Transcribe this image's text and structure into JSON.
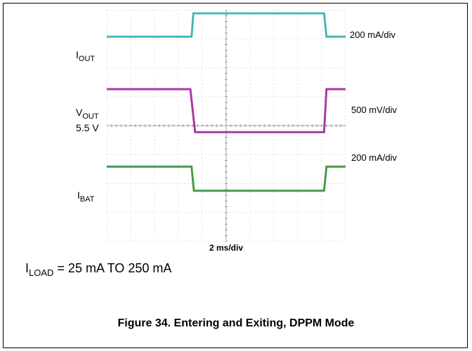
{
  "chart_data": {
    "type": "line",
    "title": "",
    "xlabel": "2 ms/div",
    "xlim": [
      0,
      20
    ],
    "ylim": [
      0,
      8
    ],
    "grid": true,
    "series": [
      {
        "name": "I_OUT",
        "color": "#3fbfbf",
        "x": [
          0,
          7.1,
          7.25,
          18.2,
          18.4,
          20
        ],
        "y": [
          7.17,
          7.17,
          8.0,
          8.0,
          7.17,
          7.17
        ]
      },
      {
        "name": "V_OUT",
        "color": "#b030a8",
        "x": [
          0,
          7.0,
          7.4,
          18.2,
          18.4,
          20
        ],
        "y": [
          5.3,
          5.3,
          3.77,
          3.77,
          5.3,
          5.3
        ]
      },
      {
        "name": "I_BAT",
        "color": "#40a040",
        "x": [
          0,
          7.1,
          7.3,
          18.2,
          18.4,
          20
        ],
        "y": [
          2.54,
          2.54,
          1.68,
          1.68,
          2.54,
          2.54
        ]
      }
    ]
  },
  "labels": {
    "iout_main": "I",
    "iout_sub": "OUT",
    "vout_main": "V",
    "vout_sub": "OUT",
    "vout_level": "5.5 V",
    "ibat_main": "I",
    "ibat_sub": "BAT"
  },
  "scales": {
    "iout": "200 mA/div",
    "vout": "500 mV/div",
    "ibat": "200 mA/div"
  },
  "condition": {
    "main": "I",
    "sub": "LOAD",
    "rest": " = 25 mA TO 250 mA"
  },
  "caption": "Figure 34. Entering and Exiting, DPPM Mode"
}
